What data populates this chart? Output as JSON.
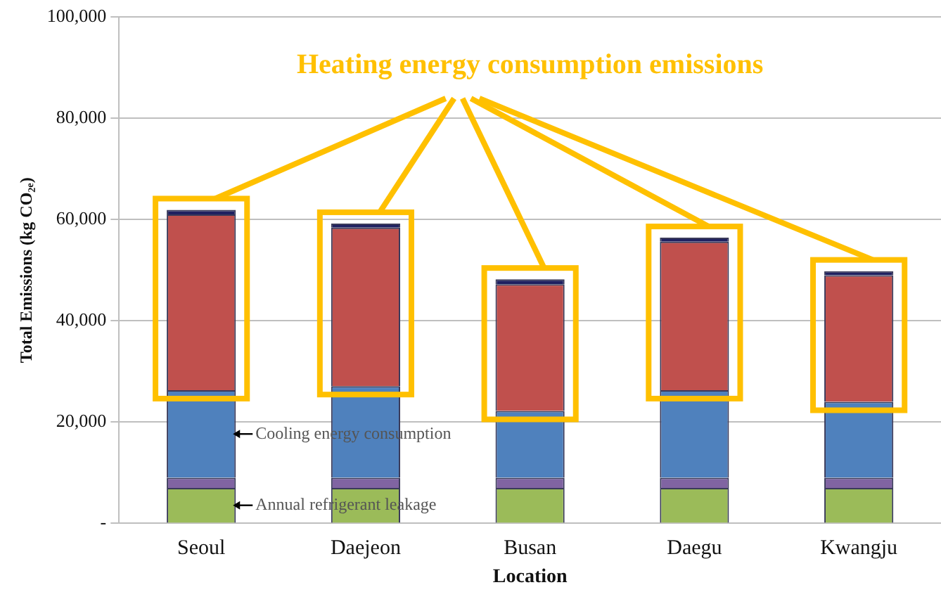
{
  "chart_data": {
    "type": "bar",
    "stacked": true,
    "xlabel": "Location",
    "ylabel": "Total Emissions (kg CO₂ₑ)",
    "categories": [
      "Seoul",
      "Daejeon",
      "Busan",
      "Daegu",
      "Kwangju"
    ],
    "series": [
      {
        "name": "Annual refrigerant leakage",
        "color": "#9bbb59",
        "values": [
          7000,
          7000,
          7000,
          7000,
          7000
        ]
      },
      {
        "color": "#8064a2",
        "values": [
          2000,
          2000,
          2000,
          2000,
          2000
        ]
      },
      {
        "name": "Cooling energy consumption",
        "color": "#4f81bd",
        "values": [
          17300,
          18100,
          13200,
          17300,
          15000
        ]
      },
      {
        "color": "#c0504d",
        "values": [
          34700,
          31300,
          25000,
          29300,
          25000
        ]
      },
      {
        "color": "#1f2060",
        "values": [
          900,
          800,
          1000,
          800,
          800
        ]
      }
    ],
    "ylim": [
      0,
      100000
    ],
    "yticks": [
      {
        "value": 0,
        "label": "-"
      },
      {
        "value": 20000,
        "label": "20,000"
      },
      {
        "value": 40000,
        "label": "40,000"
      },
      {
        "value": 60000,
        "label": "60,000"
      },
      {
        "value": 80000,
        "label": "80,000"
      },
      {
        "value": 100000,
        "label": "100,000"
      }
    ],
    "grid": "y",
    "legend": false,
    "annotations": [
      "Heating energy consumption emissions"
    ]
  }
}
